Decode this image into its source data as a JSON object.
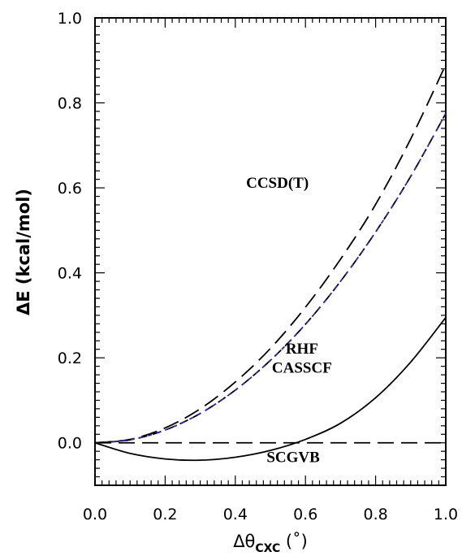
{
  "chart_data": {
    "type": "line",
    "title": "",
    "xlabel": {
      "main": "Δθ",
      "sub": "CXC",
      "unit": " (˚)"
    },
    "ylabel": "ΔE (kcal/mol)",
    "xlim": [
      0.0,
      1.0
    ],
    "ylim": [
      -0.1,
      1.0
    ],
    "xticks": [
      "0.0",
      "0.2",
      "0.4",
      "0.6",
      "0.8",
      "1.0"
    ],
    "yticks": [
      "0.0",
      "0.2",
      "0.4",
      "0.6",
      "0.8",
      "1.0"
    ],
    "grid": false,
    "x": [
      0.0,
      0.1,
      0.2,
      0.3,
      0.4,
      0.5,
      0.6,
      0.7,
      0.8,
      0.9,
      1.0
    ],
    "series": [
      {
        "name": "CCSD(T)",
        "color": "#000000",
        "dash": "long",
        "values": [
          0.0,
          0.008,
          0.035,
          0.08,
          0.143,
          0.222,
          0.319,
          0.432,
          0.561,
          0.715,
          0.89
        ]
      },
      {
        "name": "RHF",
        "color": "#000000",
        "dash": "medium",
        "values": [
          0.0,
          0.007,
          0.03,
          0.069,
          0.124,
          0.194,
          0.279,
          0.38,
          0.496,
          0.627,
          0.775
        ]
      },
      {
        "name": "CASSCF",
        "color": "#2a2aa8",
        "dash": "short",
        "values": [
          0.0,
          0.007,
          0.03,
          0.069,
          0.124,
          0.194,
          0.279,
          0.38,
          0.496,
          0.627,
          0.775
        ]
      },
      {
        "name": "SCGVB",
        "color": "#000000",
        "dash": "solid",
        "values": [
          0.0,
          -0.025,
          -0.038,
          -0.041,
          -0.034,
          -0.018,
          0.008,
          0.046,
          0.106,
          0.19,
          0.295
        ]
      },
      {
        "name": "",
        "color": "#000000",
        "dash": "long",
        "values": [
          0.0,
          0.0,
          0.0,
          0.0,
          0.0,
          0.0,
          0.0,
          0.0,
          0.0,
          0.0,
          0.0
        ]
      }
    ],
    "annotations": [
      {
        "text": "CCSD(T)",
        "x": 0.52,
        "y": 0.6
      },
      {
        "text": "RHF",
        "x": 0.59,
        "y": 0.21
      },
      {
        "text": "CASSCF",
        "x": 0.59,
        "y": 0.165
      },
      {
        "text": "SCGVB",
        "x": 0.565,
        "y": -0.045
      }
    ]
  }
}
